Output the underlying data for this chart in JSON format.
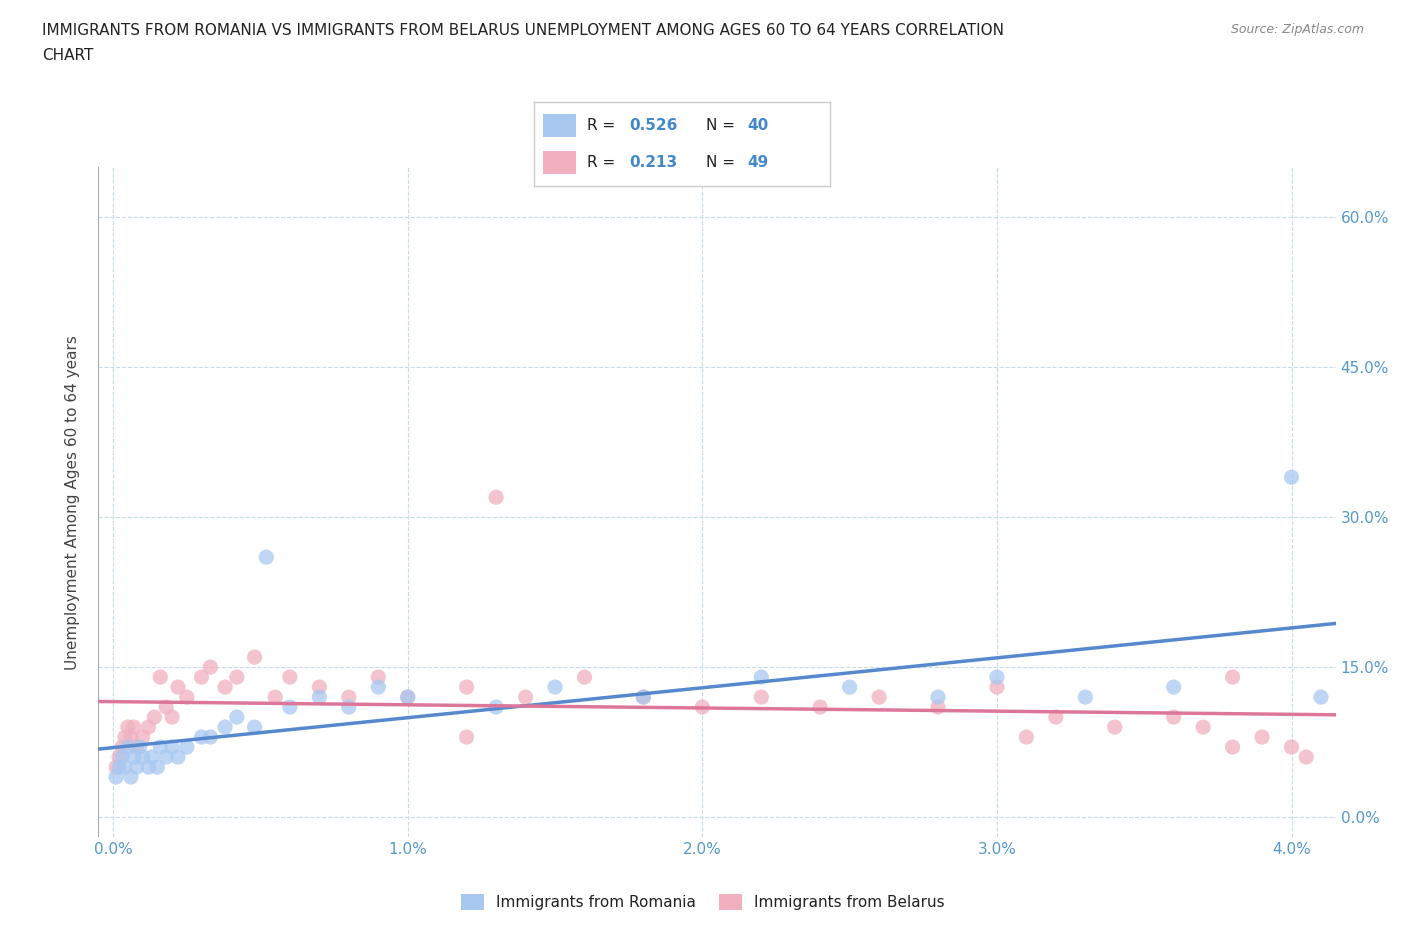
{
  "title_line1": "IMMIGRANTS FROM ROMANIA VS IMMIGRANTS FROM BELARUS UNEMPLOYMENT AMONG AGES 60 TO 64 YEARS CORRELATION",
  "title_line2": "CHART",
  "source": "Source: ZipAtlas.com",
  "xlim": [
    -0.0005,
    0.0415
  ],
  "ylim": [
    -0.02,
    0.65
  ],
  "ylabel": "Unemployment Among Ages 60 to 64 years",
  "xtick_vals": [
    0.0,
    0.01,
    0.02,
    0.03,
    0.04
  ],
  "xtick_labels": [
    "0.0%",
    "1.0%",
    "2.0%",
    "3.0%",
    "4.0%"
  ],
  "ytick_vals": [
    0.0,
    0.15,
    0.3,
    0.45,
    0.6
  ],
  "ytick_labels": [
    "0.0%",
    "15.0%",
    "30.0%",
    "45.0%",
    "60.0%"
  ],
  "romania_color": "#a8c8f0",
  "belarus_color": "#f0b0c0",
  "romania_line_color": "#5588cc",
  "belarus_line_color": "#dd7799",
  "R_romania": 0.526,
  "N_romania": 40,
  "R_belarus": 0.213,
  "N_belarus": 49,
  "romania_scatter_x": [
    0.0001,
    0.0002,
    0.0003,
    0.0004,
    0.0005,
    0.0006,
    0.0007,
    0.0008,
    0.0009,
    0.001,
    0.0012,
    0.0013,
    0.0015,
    0.0016,
    0.0018,
    0.002,
    0.0022,
    0.0025,
    0.003,
    0.0033,
    0.0038,
    0.0042,
    0.0048,
    0.0052,
    0.006,
    0.007,
    0.008,
    0.009,
    0.01,
    0.013,
    0.015,
    0.018,
    0.022,
    0.025,
    0.028,
    0.03,
    0.033,
    0.036,
    0.04,
    0.041
  ],
  "romania_scatter_y": [
    0.04,
    0.05,
    0.06,
    0.05,
    0.07,
    0.04,
    0.06,
    0.05,
    0.07,
    0.06,
    0.05,
    0.06,
    0.05,
    0.07,
    0.06,
    0.07,
    0.06,
    0.07,
    0.08,
    0.08,
    0.09,
    0.1,
    0.09,
    0.26,
    0.11,
    0.12,
    0.11,
    0.13,
    0.12,
    0.11,
    0.13,
    0.12,
    0.14,
    0.13,
    0.12,
    0.14,
    0.12,
    0.13,
    0.34,
    0.12
  ],
  "belarus_scatter_x": [
    0.0001,
    0.0002,
    0.0003,
    0.0004,
    0.0005,
    0.0006,
    0.0007,
    0.0008,
    0.001,
    0.0012,
    0.0014,
    0.0016,
    0.0018,
    0.002,
    0.0022,
    0.0025,
    0.003,
    0.0033,
    0.0038,
    0.0042,
    0.0048,
    0.0055,
    0.006,
    0.007,
    0.008,
    0.009,
    0.01,
    0.012,
    0.014,
    0.016,
    0.018,
    0.02,
    0.022,
    0.024,
    0.026,
    0.028,
    0.03,
    0.032,
    0.034,
    0.036,
    0.037,
    0.038,
    0.039,
    0.04,
    0.0405,
    0.031,
    0.013,
    0.012,
    0.038
  ],
  "belarus_scatter_y": [
    0.05,
    0.06,
    0.07,
    0.08,
    0.09,
    0.08,
    0.09,
    0.07,
    0.08,
    0.09,
    0.1,
    0.14,
    0.11,
    0.1,
    0.13,
    0.12,
    0.14,
    0.15,
    0.13,
    0.14,
    0.16,
    0.12,
    0.14,
    0.13,
    0.12,
    0.14,
    0.12,
    0.13,
    0.12,
    0.14,
    0.12,
    0.11,
    0.12,
    0.11,
    0.12,
    0.11,
    0.13,
    0.1,
    0.09,
    0.1,
    0.09,
    0.14,
    0.08,
    0.07,
    0.06,
    0.08,
    0.32,
    0.08,
    0.07
  ],
  "background_color": "#ffffff",
  "grid_color": "#c8dce8",
  "title_color": "#222222",
  "axis_label_color": "#444444",
  "tick_label_color": "#5599cc",
  "legend_text_color": "#222222",
  "stat_value_color": "#4488cc"
}
